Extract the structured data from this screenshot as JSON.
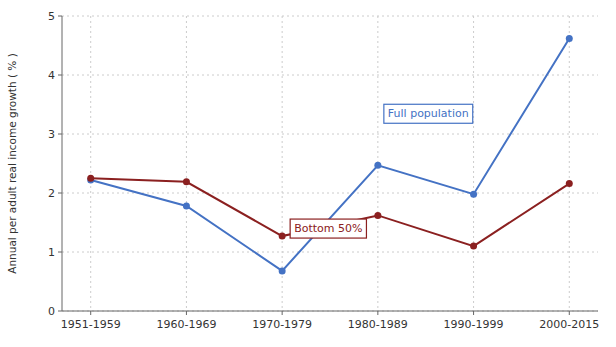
{
  "chart_data": {
    "type": "line",
    "categories": [
      "1951-1959",
      "1960-1969",
      "1970-1979",
      "1980-1989",
      "1990-1999",
      "2000-2015"
    ],
    "series": [
      {
        "name": "Full population",
        "color": "#4472C4",
        "values": [
          2.22,
          1.78,
          0.68,
          2.47,
          1.98,
          4.62
        ]
      },
      {
        "name": "Bottom 50%",
        "color": "#8B2020",
        "values": [
          2.25,
          2.19,
          1.27,
          1.62,
          1.1,
          2.16
        ]
      }
    ],
    "ylabel": "Annual per adult real income growth ( % )",
    "ylim": [
      0,
      5
    ],
    "yticks": [
      0,
      1,
      2,
      3,
      4,
      5
    ],
    "marker": "circle",
    "grid": true
  }
}
